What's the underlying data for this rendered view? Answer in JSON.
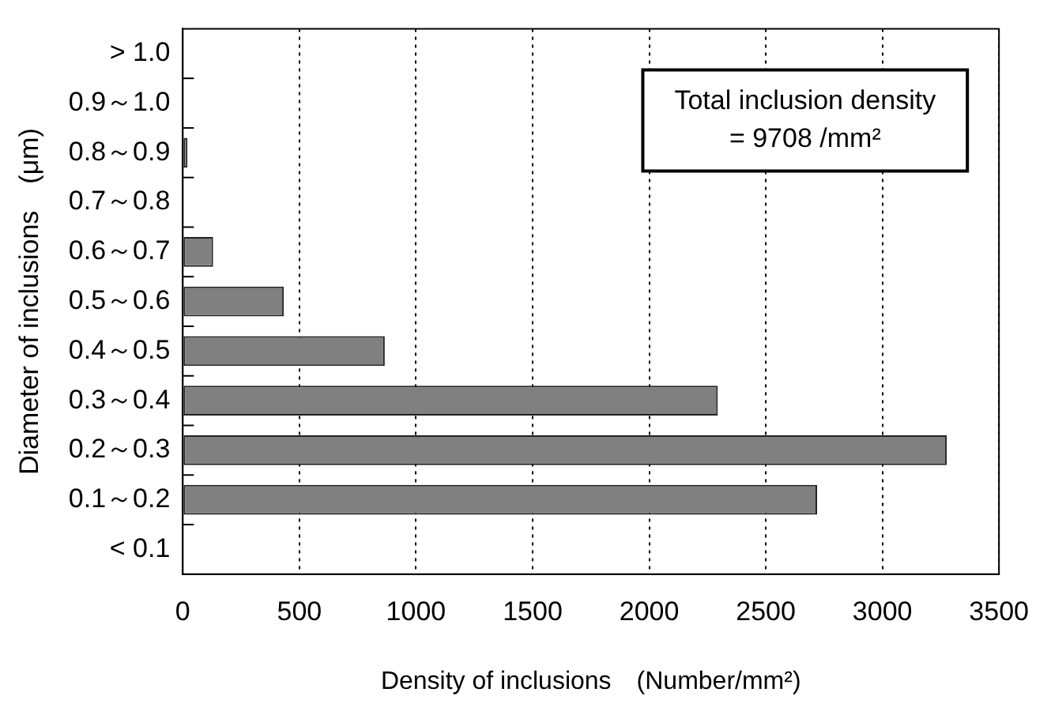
{
  "chart_data": {
    "type": "bar",
    "orientation": "horizontal",
    "categories": [
      "> 1.0",
      "0.9～1.0",
      "0.8～0.9",
      "0.7～0.8",
      "0.6～0.7",
      "0.5～0.6",
      "0.4～0.5",
      "0.3～0.4",
      "0.2～0.3",
      "0.1～0.2",
      "< 0.1"
    ],
    "values": [
      0,
      0,
      20,
      0,
      130,
      433,
      866,
      2294,
      3276,
      2720,
      0
    ],
    "color": "#808080",
    "xlabel": "Density of inclusions　(Number/mm²)",
    "ylabel": "Diameter of inclusions　(μm)",
    "xlim": [
      0,
      3500
    ],
    "xticks": [
      0,
      500,
      1000,
      1500,
      2000,
      2500,
      3000,
      3500
    ],
    "grid": "x",
    "legend": false,
    "annotations": [
      "Total inclusion density\n= 9708 /mm²"
    ]
  }
}
